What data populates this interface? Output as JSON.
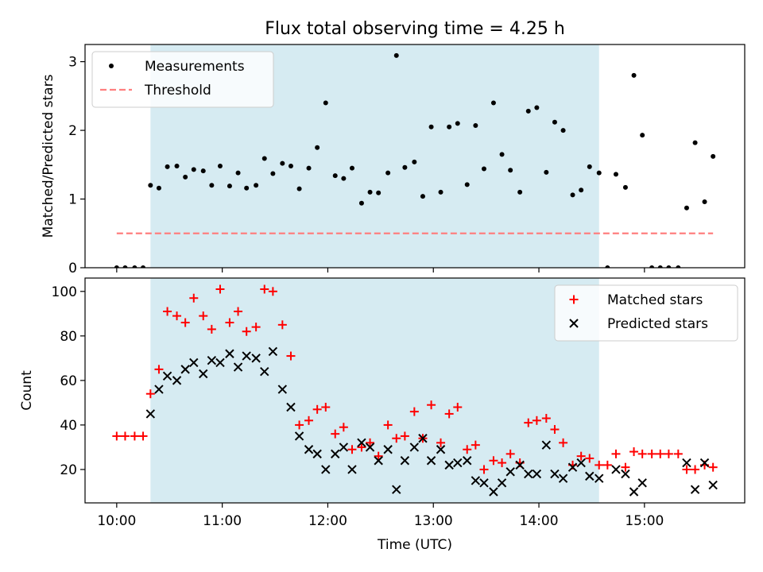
{
  "title": "Flux total observing time = 4.25 h",
  "chart_data": [
    {
      "type": "scatter",
      "title": "Flux total observing time = 4.25 h",
      "xlabel": "",
      "ylabel": "Matched/Predicted stars",
      "x_tick_labels": [
        "10:00",
        "11:00",
        "12:00",
        "13:00",
        "14:00",
        "15:00"
      ],
      "x_tick_values": [
        10.0,
        11.0,
        12.0,
        13.0,
        14.0,
        15.0
      ],
      "xlim": [
        9.7,
        15.95
      ],
      "ylim": [
        0,
        3.25
      ],
      "y_ticks": [
        0,
        1,
        2,
        3
      ],
      "shaded_interval": [
        10.32,
        14.57
      ],
      "shade_color": "#add8e6",
      "legend_position": "upper left",
      "series": [
        {
          "name": "Measurements",
          "marker": "dot",
          "color": "#000000",
          "x": [
            10.0,
            10.08,
            10.17,
            10.25,
            10.32,
            10.4,
            10.48,
            10.57,
            10.65,
            10.73,
            10.82,
            10.9,
            10.98,
            11.07,
            11.15,
            11.23,
            11.32,
            11.4,
            11.48,
            11.57,
            11.65,
            11.73,
            11.82,
            11.9,
            11.98,
            12.07,
            12.15,
            12.23,
            12.32,
            12.4,
            12.48,
            12.57,
            12.65,
            12.73,
            12.82,
            12.9,
            12.98,
            13.07,
            13.15,
            13.23,
            13.32,
            13.4,
            13.48,
            13.57,
            13.65,
            13.73,
            13.82,
            13.9,
            13.98,
            14.07,
            14.15,
            14.23,
            14.32,
            14.4,
            14.48,
            14.57,
            14.65,
            14.73,
            14.82,
            14.9,
            14.98,
            15.07,
            15.15,
            15.23,
            15.32,
            15.4,
            15.48,
            15.57,
            15.65
          ],
          "y": [
            0.0,
            0.0,
            0.0,
            0.0,
            1.2,
            1.16,
            1.47,
            1.48,
            1.32,
            1.43,
            1.41,
            1.2,
            1.48,
            1.19,
            1.38,
            1.16,
            1.2,
            1.59,
            1.37,
            1.52,
            1.48,
            1.15,
            1.45,
            1.75,
            2.4,
            1.34,
            1.3,
            1.45,
            0.94,
            1.1,
            1.09,
            1.38,
            3.09,
            1.46,
            1.54,
            1.04,
            2.05,
            1.1,
            2.05,
            2.1,
            1.21,
            2.07,
            1.44,
            2.4,
            1.65,
            1.42,
            1.1,
            2.28,
            2.33,
            1.39,
            2.12,
            2.0,
            1.06,
            1.13,
            1.47,
            1.38,
            0.0,
            1.36,
            1.17,
            2.8,
            1.93,
            0.0,
            0.0,
            0.0,
            0.0,
            0.87,
            1.82,
            0.96,
            1.62
          ]
        },
        {
          "name": "Threshold",
          "marker": "dashed-line",
          "color": "#ff7f7f",
          "x": [
            10.0,
            15.65
          ],
          "y": [
            0.5,
            0.5
          ]
        }
      ]
    },
    {
      "type": "scatter",
      "title": "",
      "xlabel": "Time (UTC)",
      "ylabel": "Count",
      "x_tick_labels": [
        "10:00",
        "11:00",
        "12:00",
        "13:00",
        "14:00",
        "15:00"
      ],
      "x_tick_values": [
        10.0,
        11.0,
        12.0,
        13.0,
        14.0,
        15.0
      ],
      "xlim": [
        9.7,
        15.95
      ],
      "ylim": [
        5,
        106
      ],
      "y_ticks": [
        20,
        40,
        60,
        80,
        100
      ],
      "shaded_interval": [
        10.32,
        14.57
      ],
      "shade_color": "#add8e6",
      "legend_position": "upper right",
      "series": [
        {
          "name": "Matched stars",
          "marker": "plus",
          "color": "#ff0000",
          "x": [
            10.0,
            10.08,
            10.17,
            10.25,
            10.32,
            10.4,
            10.48,
            10.57,
            10.65,
            10.73,
            10.82,
            10.9,
            10.98,
            11.07,
            11.15,
            11.23,
            11.32,
            11.4,
            11.48,
            11.57,
            11.65,
            11.73,
            11.82,
            11.9,
            11.98,
            12.07,
            12.15,
            12.23,
            12.32,
            12.4,
            12.48,
            12.57,
            12.65,
            12.73,
            12.82,
            12.9,
            12.98,
            13.07,
            13.15,
            13.23,
            13.32,
            13.4,
            13.48,
            13.57,
            13.65,
            13.73,
            13.82,
            13.9,
            13.98,
            14.07,
            14.15,
            14.23,
            14.32,
            14.4,
            14.48,
            14.57,
            14.65,
            14.73,
            14.82,
            14.9,
            14.98,
            15.07,
            15.15,
            15.23,
            15.32,
            15.4,
            15.48,
            15.57,
            15.65
          ],
          "y": [
            35,
            35,
            35,
            35,
            54,
            65,
            91,
            89,
            86,
            97,
            89,
            83,
            101,
            86,
            91,
            82,
            84,
            101,
            100,
            85,
            71,
            40,
            42,
            47,
            48,
            36,
            39,
            29,
            30,
            32,
            26,
            40,
            34,
            35,
            46,
            34,
            49,
            32,
            45,
            48,
            29,
            31,
            20,
            24,
            23,
            27,
            23,
            41,
            42,
            43,
            38,
            32,
            22,
            26,
            25,
            22,
            22,
            27,
            21,
            28,
            27,
            27,
            27,
            27,
            27,
            20,
            20,
            22,
            21
          ]
        },
        {
          "name": "Predicted stars",
          "marker": "x",
          "color": "#000000",
          "x": [
            10.32,
            10.4,
            10.48,
            10.57,
            10.65,
            10.73,
            10.82,
            10.9,
            10.98,
            11.07,
            11.15,
            11.23,
            11.32,
            11.4,
            11.48,
            11.57,
            11.65,
            11.73,
            11.82,
            11.9,
            11.98,
            12.07,
            12.15,
            12.23,
            12.32,
            12.4,
            12.48,
            12.57,
            12.65,
            12.73,
            12.82,
            12.9,
            12.98,
            13.07,
            13.15,
            13.23,
            13.32,
            13.4,
            13.48,
            13.57,
            13.65,
            13.73,
            13.82,
            13.9,
            13.98,
            14.07,
            14.15,
            14.23,
            14.32,
            14.4,
            14.48,
            14.57,
            14.73,
            14.82,
            14.9,
            14.98,
            15.4,
            15.48,
            15.57,
            15.65
          ],
          "y": [
            45,
            56,
            62,
            60,
            65,
            68,
            63,
            69,
            68,
            72,
            66,
            71,
            70,
            64,
            73,
            56,
            48,
            35,
            29,
            27,
            20,
            27,
            30,
            20,
            32,
            30,
            24,
            29,
            11,
            24,
            30,
            34,
            24,
            29,
            22,
            23,
            24,
            15,
            14,
            10,
            14,
            19,
            22,
            18,
            18,
            31,
            18,
            16,
            21,
            23,
            17,
            16,
            20,
            18,
            10,
            14,
            23,
            11,
            23,
            13
          ]
        }
      ]
    }
  ]
}
